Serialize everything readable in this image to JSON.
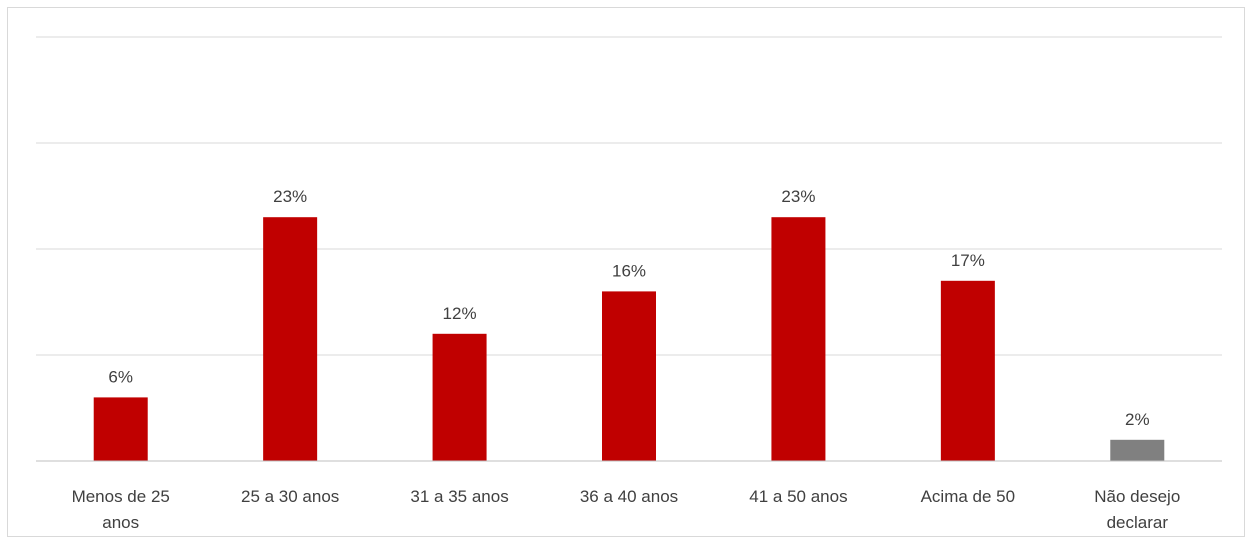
{
  "chart_data": {
    "type": "bar",
    "categories": [
      [
        "Menos de 25",
        "anos"
      ],
      [
        "25 a 30 anos"
      ],
      [
        "31 a 35 anos"
      ],
      [
        "36 a 40 anos"
      ],
      [
        "41 a 50 anos"
      ],
      [
        "Acima de 50"
      ],
      [
        "Não desejo",
        "declarar"
      ]
    ],
    "values": [
      6,
      23,
      12,
      16,
      23,
      17,
      2
    ],
    "value_labels": [
      "6%",
      "23%",
      "12%",
      "16%",
      "23%",
      "17%",
      "2%"
    ],
    "bar_colors": [
      "#c00000",
      "#c00000",
      "#c00000",
      "#c00000",
      "#c00000",
      "#c00000",
      "#808080"
    ],
    "ylim": [
      0,
      40
    ],
    "gridlines": [
      10,
      20,
      30,
      40
    ],
    "grid": true,
    "legend": "none"
  }
}
